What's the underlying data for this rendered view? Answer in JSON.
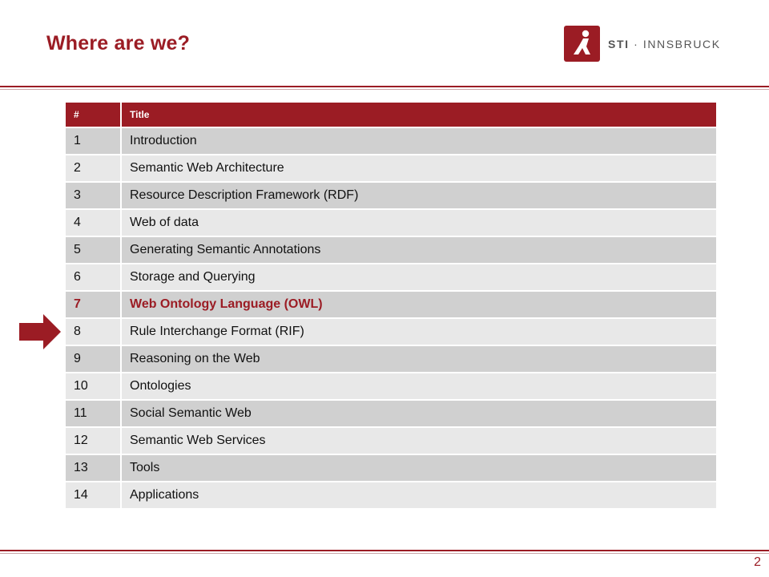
{
  "slide": {
    "title": "Where are we?",
    "page_number": "2"
  },
  "logo": {
    "strong": "STI",
    "rest": " · INNSBRUCK",
    "brand_color": "#9b1c24"
  },
  "table": {
    "headers": [
      "#",
      "Title"
    ],
    "rows": [
      {
        "num": "1",
        "title": "Introduction"
      },
      {
        "num": "2",
        "title": "Semantic Web Architecture"
      },
      {
        "num": "3",
        "title": "Resource Description Framework (RDF)"
      },
      {
        "num": "4",
        "title": "Web of data"
      },
      {
        "num": "5",
        "title": "Generating Semantic Annotations"
      },
      {
        "num": "6",
        "title": "Storage and Querying"
      },
      {
        "num": "7",
        "title": "Web Ontology Language (OWL)",
        "current": true
      },
      {
        "num": "8",
        "title": "Rule Interchange Format (RIF)"
      },
      {
        "num": "9",
        "title": "Reasoning on the Web"
      },
      {
        "num": "10",
        "title": "Ontologies"
      },
      {
        "num": "11",
        "title": "Social Semantic Web"
      },
      {
        "num": "12",
        "title": "Semantic Web Services"
      },
      {
        "num": "13",
        "title": "Tools"
      },
      {
        "num": "14",
        "title": "Applications"
      }
    ]
  },
  "indicator": {
    "icon": "right-arrow-icon",
    "points_to_row": "8"
  },
  "colors": {
    "accent": "#9b1c24",
    "row_odd": "#d0d0d0",
    "row_even": "#e8e8e8"
  }
}
